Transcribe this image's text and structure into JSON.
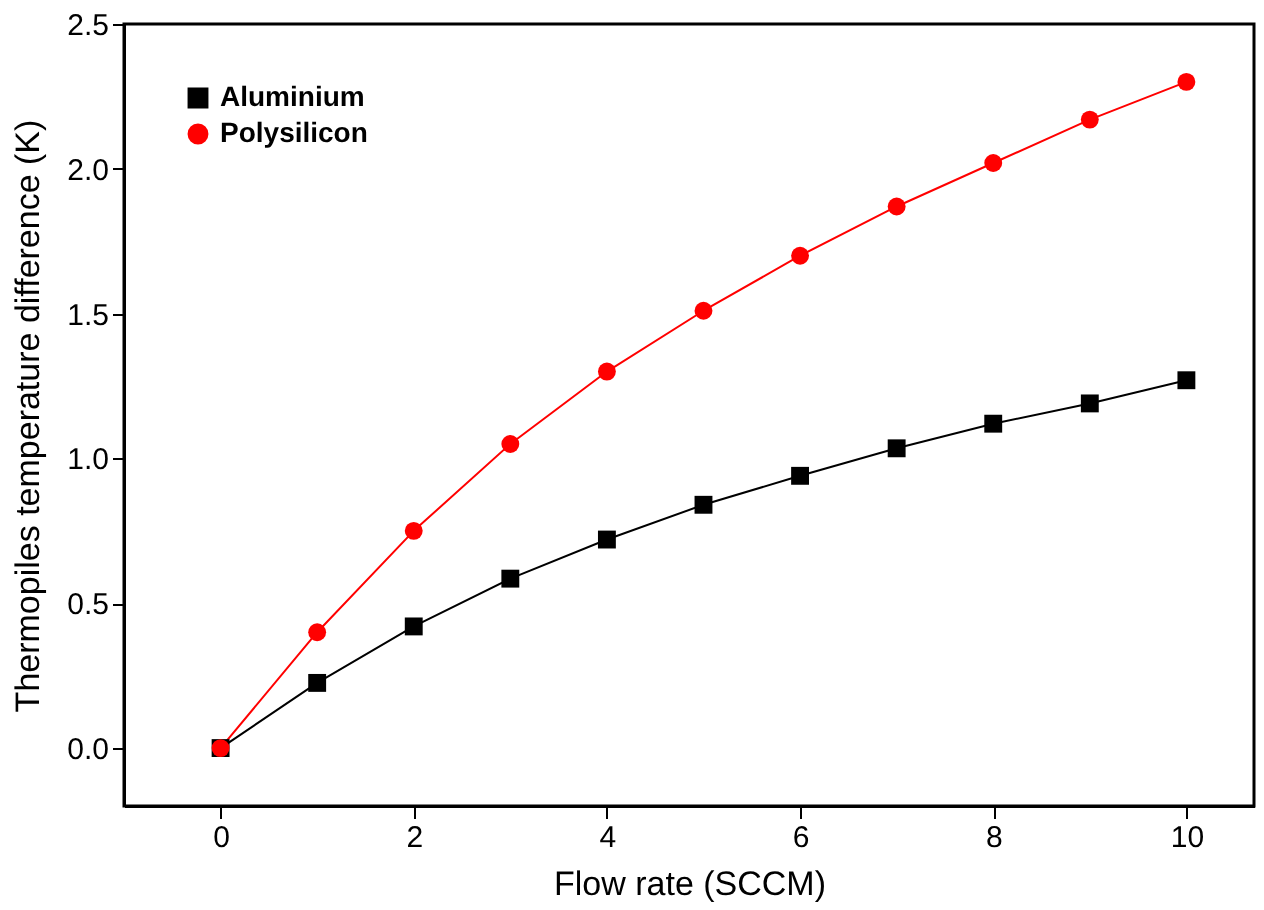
{
  "chart_data": {
    "type": "line",
    "xlabel": "Flow rate (SCCM)",
    "ylabel": "Thermopiles temperature difference (K)",
    "x": [
      0,
      1,
      2,
      3,
      4,
      5,
      6,
      7,
      8,
      9,
      10
    ],
    "series": [
      {
        "name": "Aluminium",
        "color": "#000000",
        "marker": "square",
        "values": [
          0.0,
          0.225,
          0.42,
          0.585,
          0.72,
          0.84,
          0.94,
          1.035,
          1.12,
          1.19,
          1.27
        ]
      },
      {
        "name": "Polysilicon",
        "color": "#ff0000",
        "marker": "circle",
        "values": [
          0.0,
          0.4,
          0.75,
          1.05,
          1.3,
          1.51,
          1.7,
          1.87,
          2.02,
          2.17,
          2.3
        ]
      }
    ],
    "xlim": [
      -1,
      10.7
    ],
    "ylim": [
      -0.2,
      2.5
    ],
    "xticks": [
      0,
      2,
      4,
      6,
      8,
      10
    ],
    "yticks": [
      {
        "value": 0,
        "label": "0.0"
      },
      0.5,
      {
        "value": 1,
        "label": "1.0"
      },
      1.5,
      {
        "value": 2,
        "label": "2.0"
      },
      2.5
    ],
    "grid": false,
    "legend": "top left",
    "line_style": "solid"
  }
}
